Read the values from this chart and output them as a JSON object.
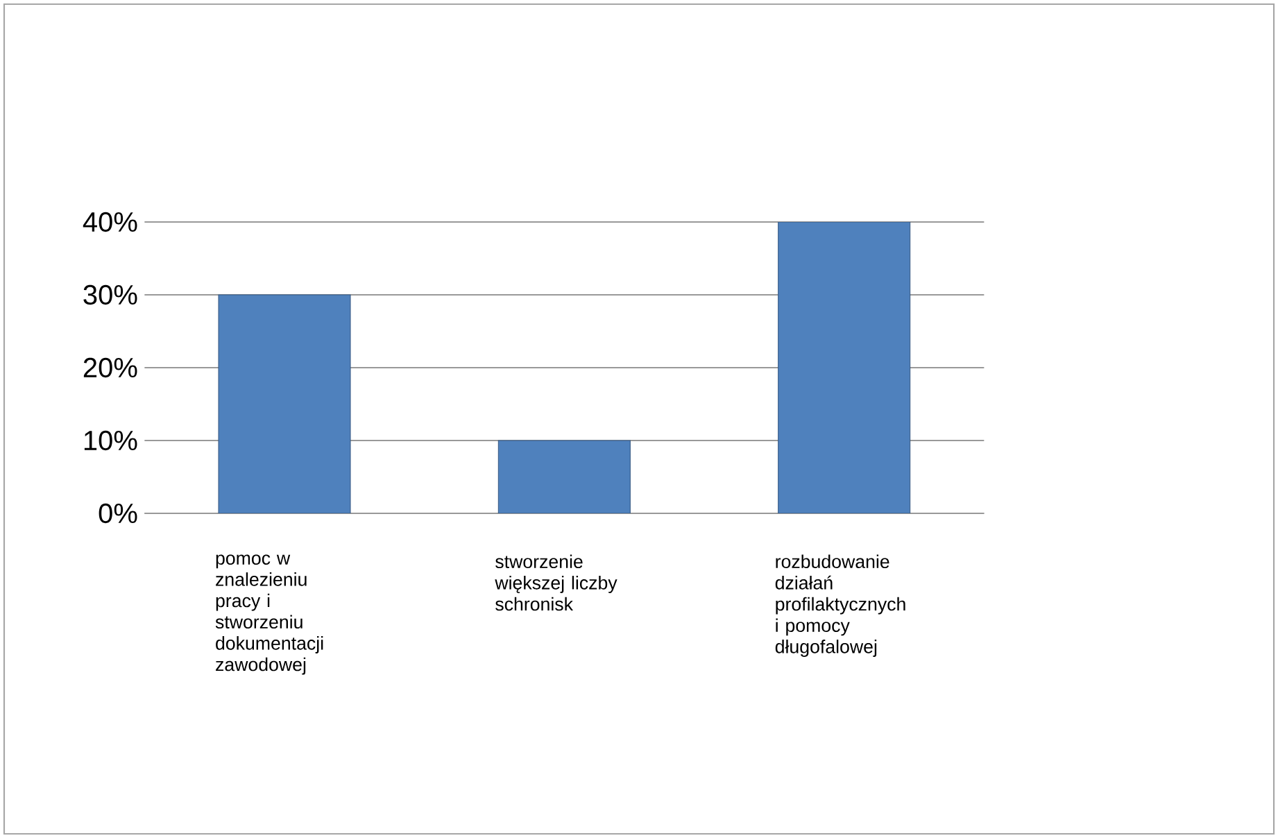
{
  "chart_data": {
    "type": "bar",
    "categories": [
      "pomoc w znalezieniu pracy i stworzeniu dokumentacji zawodowej",
      "stworzenie większej liczby schronisk",
      "rozbudowanie działań profilaktycznych i pomocy długofalowej"
    ],
    "values": [
      30,
      10,
      40
    ],
    "color": "#4f81bd",
    "ylim": [
      0,
      40
    ],
    "yticks": [
      {
        "value": 0,
        "label": "0%"
      },
      {
        "value": 10,
        "label": "10%"
      },
      {
        "value": 20,
        "label": "20%"
      },
      {
        "value": 30,
        "label": "30%"
      },
      {
        "value": 40,
        "label": "40%"
      }
    ],
    "grid": "y"
  }
}
